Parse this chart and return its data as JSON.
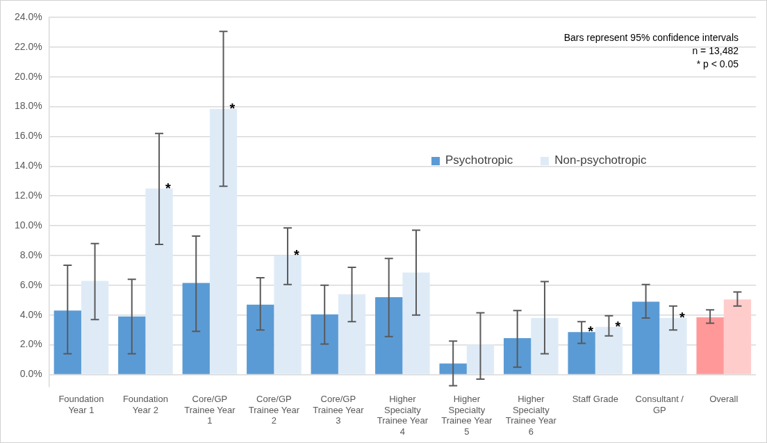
{
  "chart_data": {
    "type": "bar",
    "categories": [
      "Foundation Year 1",
      "Foundation Year 2",
      "Core/GP Trainee Year 1",
      "Core/GP Trainee Year 2",
      "Core/GP Trainee Year 3",
      "Higher Specialty Trainee Year 4",
      "Higher Specialty Trainee Year 5",
      "Higher Specialty Trainee Year 6",
      "Staff Grade",
      "Consultant / GP",
      "Overall"
    ],
    "series": [
      {
        "name": "Psychotropic",
        "color": "#5b9bd5",
        "colors": [
          "#5b9bd5",
          "#5b9bd5",
          "#5b9bd5",
          "#5b9bd5",
          "#5b9bd5",
          "#5b9bd5",
          "#5b9bd5",
          "#5b9bd5",
          "#5b9bd5",
          "#5b9bd5",
          "#ff9999"
        ],
        "values": [
          4.3,
          3.9,
          6.15,
          4.7,
          4.05,
          5.2,
          0.75,
          2.45,
          2.85,
          4.9,
          3.85
        ],
        "errors": [
          [
            1.4,
            7.35
          ],
          [
            1.4,
            6.4
          ],
          [
            2.9,
            9.3
          ],
          [
            3.0,
            6.5
          ],
          [
            2.05,
            6.0
          ],
          [
            2.55,
            7.8
          ],
          [
            -0.75,
            2.25
          ],
          [
            0.5,
            4.3
          ],
          [
            2.1,
            3.55
          ],
          [
            3.8,
            6.05
          ],
          [
            3.45,
            4.35
          ]
        ]
      },
      {
        "name": "Non-psychotropic",
        "color": "#deebf7",
        "colors": [
          "#deebf7",
          "#deebf7",
          "#deebf7",
          "#deebf7",
          "#deebf7",
          "#deebf7",
          "#deebf7",
          "#deebf7",
          "#deebf7",
          "#deebf7",
          "#ffcccc"
        ],
        "values": [
          6.3,
          12.5,
          17.85,
          8.0,
          5.4,
          6.85,
          2.0,
          3.8,
          3.2,
          3.8,
          5.05
        ],
        "errors": [
          [
            3.7,
            8.8
          ],
          [
            8.75,
            16.2
          ],
          [
            12.65,
            23.05
          ],
          [
            6.05,
            9.85
          ],
          [
            3.55,
            7.2
          ],
          [
            4.0,
            9.7
          ],
          [
            -0.3,
            4.15
          ],
          [
            1.4,
            6.25
          ],
          [
            2.6,
            3.95
          ],
          [
            3.0,
            4.6
          ],
          [
            4.6,
            5.55
          ]
        ]
      }
    ],
    "ylim": [
      -0.8,
      24
    ],
    "yticks": [
      {
        "value": 0,
        "label": "0.0%"
      },
      {
        "value": 2,
        "label": "2.0%"
      },
      {
        "value": 4,
        "label": "4.0%"
      },
      {
        "value": 6,
        "label": "6.0%"
      },
      {
        "value": 8,
        "label": "8.0%"
      },
      {
        "value": 10,
        "label": "10.0%"
      },
      {
        "value": 12,
        "label": "12.0%"
      },
      {
        "value": 14,
        "label": "14.0%"
      },
      {
        "value": 16,
        "label": "16.0%"
      },
      {
        "value": 18,
        "label": "18.0%"
      },
      {
        "value": 20,
        "label": "20.0%"
      },
      {
        "value": 22,
        "label": "22.0%"
      },
      {
        "value": 24,
        "label": "24.0%"
      }
    ],
    "grid": "y",
    "legend": "right",
    "annotations": [
      "Bars represent 95% confidence intervals",
      "n = 13,482",
      "* p < 0.05",
      {
        "text": "*",
        "x": "Foundation Year 2",
        "y": 12.5
      },
      {
        "text": "*",
        "x": "Core/GP Trainee Year 1",
        "y": 17.85
      },
      {
        "text": "*",
        "x": "Core/GP Trainee Year 2",
        "y": 8.0
      },
      {
        "text": "*",
        "x": "Staff Grade",
        "y": 2.85
      },
      {
        "text": "*",
        "x": "Staff Grade",
        "y": 3.2
      },
      {
        "text": "*",
        "x": "Consultant / GP",
        "y": 3.8
      }
    ]
  }
}
